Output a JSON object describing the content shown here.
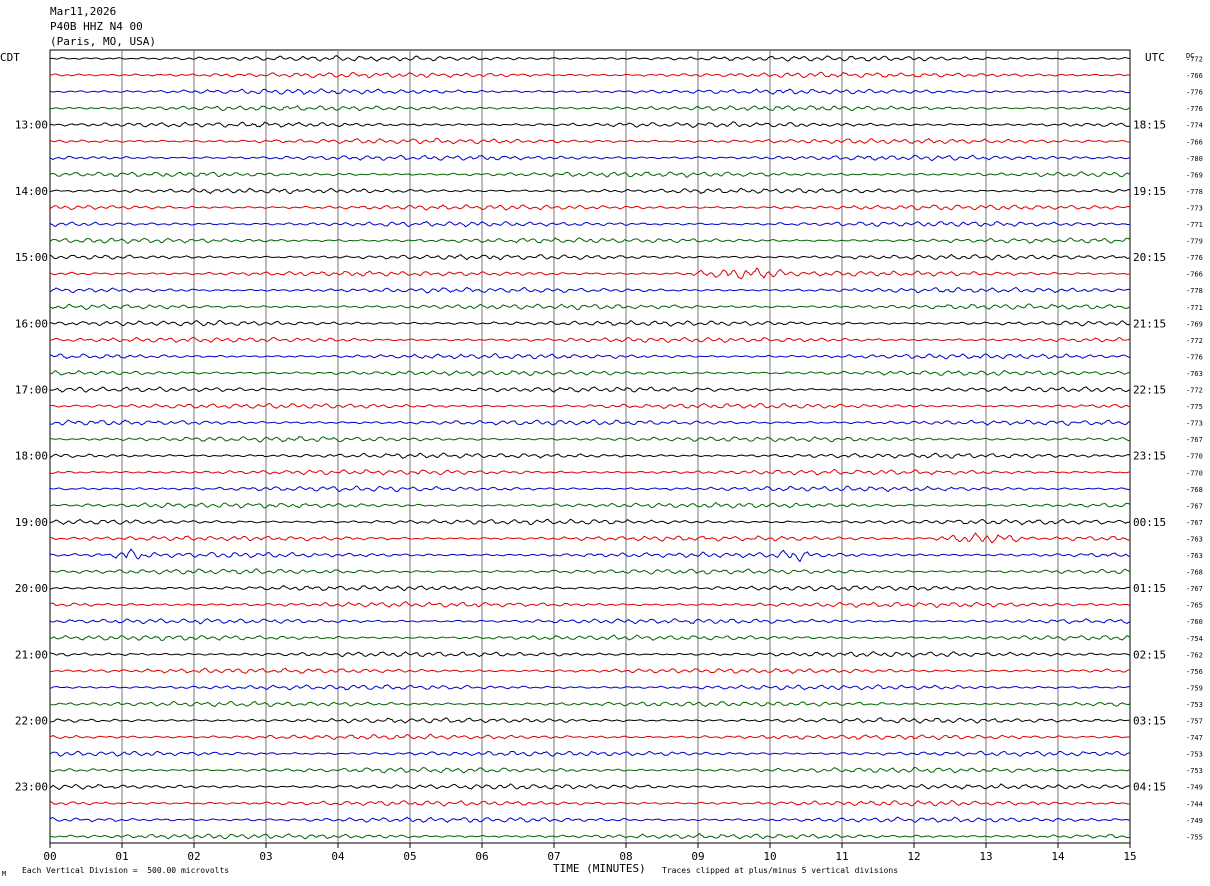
{
  "header": {
    "date": "Mar11,2026",
    "station": "P40B HHZ N4 00",
    "location": "(Paris, MO, USA)"
  },
  "chart_data": {
    "type": "line",
    "left_timezone": "CDT",
    "right_timezone": "UTC",
    "dc_header": "DC",
    "xlabel": "TIME (MINUTES)",
    "x_ticks": [
      "00",
      "01",
      "02",
      "03",
      "04",
      "05",
      "06",
      "07",
      "08",
      "09",
      "10",
      "11",
      "12",
      "13",
      "14",
      "15"
    ],
    "xlim": [
      0,
      15
    ],
    "rows_per_hour": 4,
    "trace_colors": [
      "#000000",
      "#dd0000",
      "#0000cc",
      "#006400"
    ],
    "left_hour_labels": [
      "13:00",
      "14:00",
      "15:00",
      "16:00",
      "17:00",
      "18:00",
      "19:00",
      "20:00",
      "21:00",
      "22:00",
      "23:00"
    ],
    "right_hour_labels": [
      "18:15",
      "19:15",
      "20:15",
      "21:15",
      "22:15",
      "23:15",
      "00:15",
      "01:15",
      "02:15",
      "03:15",
      "04:15"
    ],
    "dc_offsets": [
      -772,
      -766,
      -776,
      -776,
      -774,
      -766,
      -780,
      -769,
      -778,
      -773,
      -771,
      -779,
      -776,
      -766,
      -778,
      -771,
      -769,
      -772,
      -776,
      -763,
      -772,
      -775,
      -773,
      -767,
      -770,
      -770,
      -768,
      -767,
      -767,
      -763,
      -763,
      -768,
      -767,
      -765,
      -760,
      -754,
      -762,
      -756,
      -759,
      -753,
      -757,
      -747,
      -753,
      -753,
      -749,
      -744,
      -749,
      -755
    ],
    "notable_events": [
      {
        "row": 29,
        "start_min": 12.3,
        "end_min": 13.6
      },
      {
        "row": 30,
        "start_min": 0.9,
        "end_min": 1.4
      },
      {
        "row": 30,
        "start_min": 10.1,
        "end_min": 10.6
      },
      {
        "row": 13,
        "start_min": 8.9,
        "end_min": 10.3
      }
    ],
    "grid": true
  },
  "footer": {
    "scale_note": "Each Vertical Division =  500.00 microvolts",
    "clip_note": "Traces clipped at plus/minus 5 vertical divisions",
    "corner_mark": "M"
  }
}
